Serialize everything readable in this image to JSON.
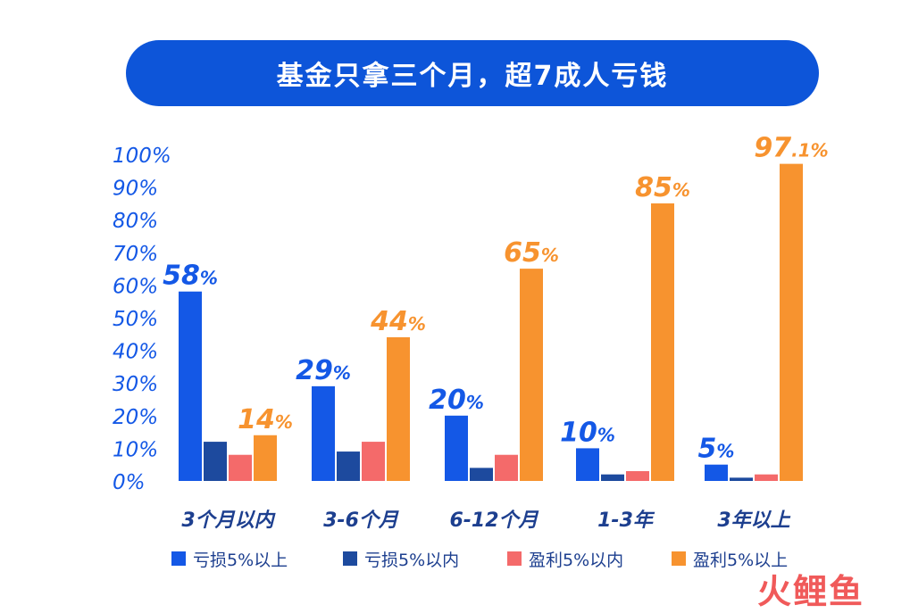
{
  "title": "基金只拿三个月，超7成人亏钱",
  "watermark": "火鲤鱼",
  "colors": {
    "loss_above_5": "#1458e6",
    "loss_within_5": "#1d4a9e",
    "profit_within_5": "#f46a6a",
    "profit_above_5": "#f7932f",
    "axis_text": "#1458e6",
    "category_text": "#1d3f8f"
  },
  "chart_data": {
    "type": "bar",
    "categories": [
      "3个月以内",
      "3-6个月",
      "6-12个月",
      "1-3年",
      "3年以上"
    ],
    "series": [
      {
        "name": "亏损5%以上",
        "values": [
          58,
          29,
          20,
          10,
          5
        ]
      },
      {
        "name": "亏损5%以内",
        "values": [
          12,
          9,
          4,
          2,
          1
        ]
      },
      {
        "name": "盈利5%以内",
        "values": [
          8,
          12,
          8,
          3,
          2
        ]
      },
      {
        "name": "盈利5%以上",
        "values": [
          14,
          44,
          65,
          85,
          97.1
        ]
      }
    ],
    "ylim": [
      0,
      100
    ],
    "yticks": [
      "0%",
      "10%",
      "20%",
      "30%",
      "40%",
      "50%",
      "60%",
      "70%",
      "80%",
      "90%",
      "100%"
    ],
    "data_labels": [
      {
        "category": "3个月以内",
        "series": "亏损5%以上",
        "num": "58",
        "unit": "%"
      },
      {
        "category": "3个月以内",
        "series": "盈利5%以上",
        "num": "14",
        "unit": "%"
      },
      {
        "category": "3-6个月",
        "series": "亏损5%以上",
        "num": "29",
        "unit": "%"
      },
      {
        "category": "3-6个月",
        "series": "盈利5%以上",
        "num": "44",
        "unit": "%"
      },
      {
        "category": "6-12个月",
        "series": "亏损5%以上",
        "num": "20",
        "unit": "%"
      },
      {
        "category": "6-12个月",
        "series": "盈利5%以上",
        "num": "65",
        "unit": "%"
      },
      {
        "category": "1-3年",
        "series": "亏损5%以上",
        "num": "10",
        "unit": "%"
      },
      {
        "category": "1-3年",
        "series": "盈利5%以上",
        "num": "85",
        "unit": "%"
      },
      {
        "category": "3年以上",
        "series": "亏损5%以上",
        "num": "5",
        "unit": "%"
      },
      {
        "category": "3年以上",
        "series": "盈利5%以上",
        "num": "97",
        "unit": ".1%"
      }
    ],
    "legend_position": "bottom",
    "grid": false
  }
}
